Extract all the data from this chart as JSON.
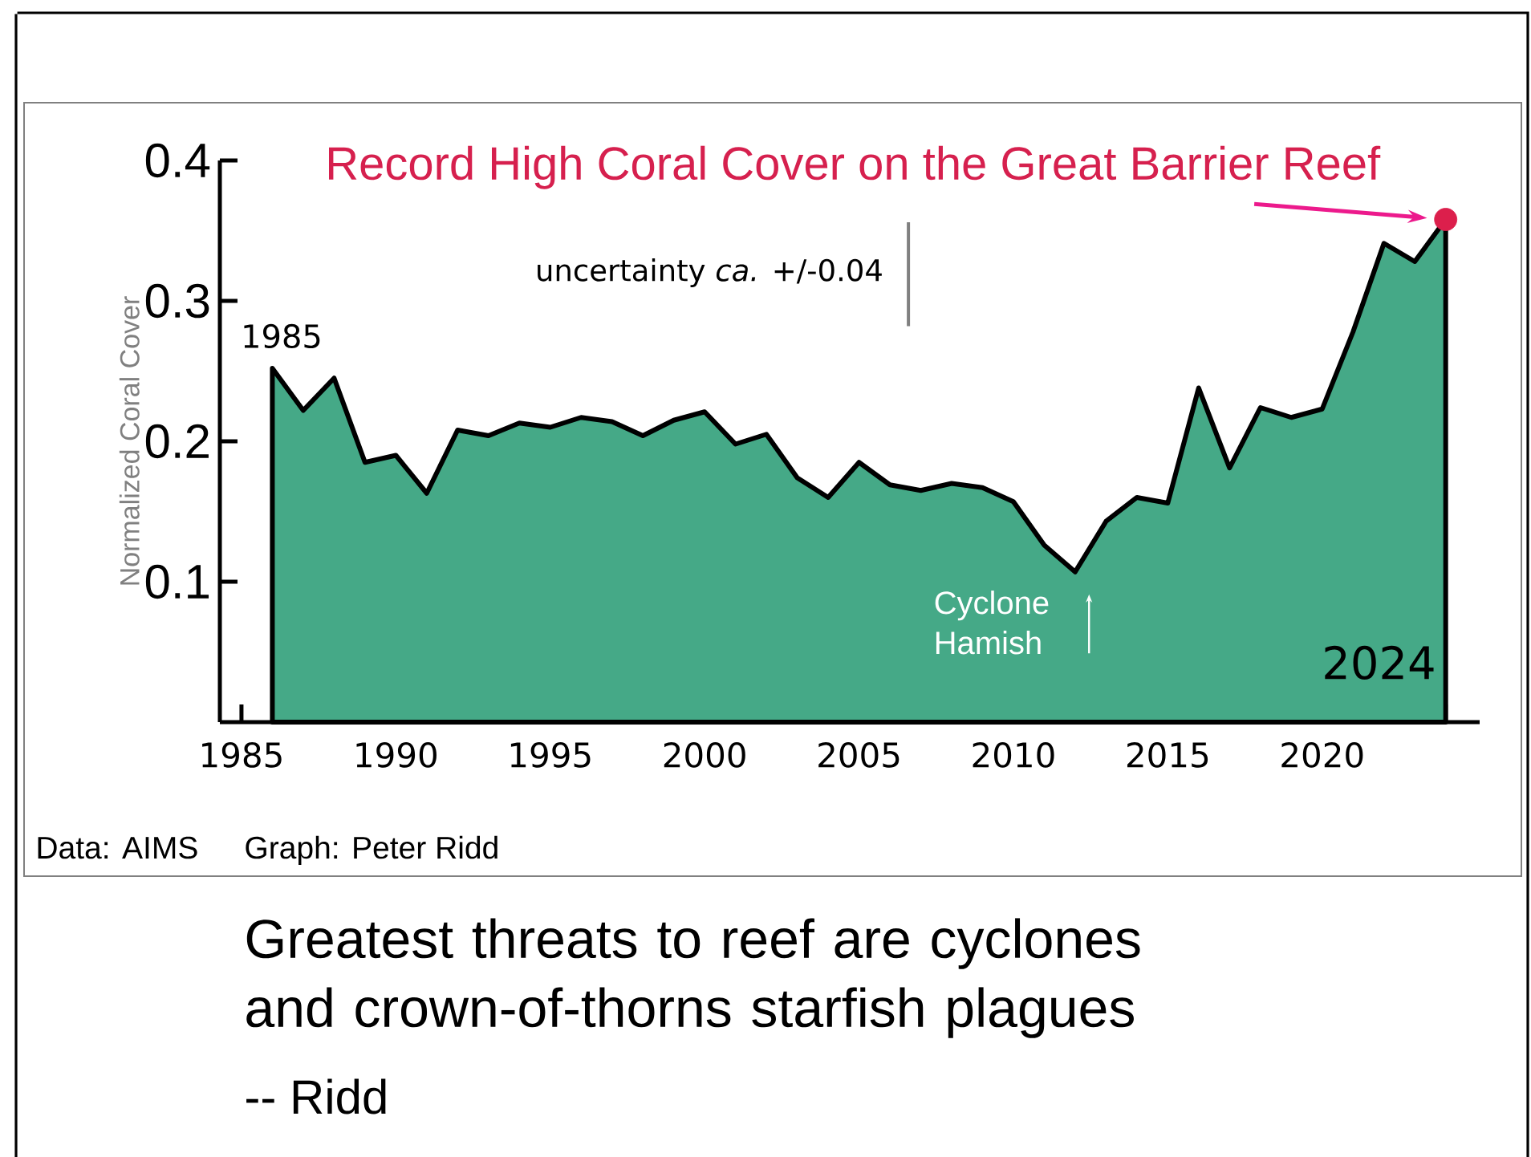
{
  "chart_data": {
    "type": "area",
    "ylabel": "Normalized Coral Cover",
    "x": [
      1986,
      1987,
      1988,
      1989,
      1990,
      1991,
      1992,
      1993,
      1994,
      1995,
      1996,
      1997,
      1998,
      1999,
      2000,
      2001,
      2002,
      2003,
      2004,
      2005,
      2006,
      2007,
      2008,
      2009,
      2010,
      2011,
      2012,
      2013,
      2014,
      2015,
      2016,
      2017,
      2018,
      2019,
      2020,
      2021,
      2022,
      2023,
      2024
    ],
    "series": [
      {
        "color": "#45a987",
        "values": [
          0.252,
          0.222,
          0.245,
          0.185,
          0.19,
          0.163,
          0.208,
          0.204,
          0.213,
          0.21,
          0.217,
          0.214,
          0.204,
          0.215,
          0.221,
          0.198,
          0.205,
          0.174,
          0.16,
          0.185,
          0.169,
          0.165,
          0.17,
          0.167,
          0.157,
          0.126,
          0.107,
          0.143,
          0.16,
          0.156,
          0.238,
          0.181,
          0.224,
          0.217,
          0.223,
          0.278,
          0.341,
          0.328,
          0.358
        ]
      },
      {
        "type": "scatter",
        "color": "#dc1f4c",
        "marker": "circle",
        "values": [
          null,
          null,
          null,
          null,
          null,
          null,
          null,
          null,
          null,
          null,
          null,
          null,
          null,
          null,
          null,
          null,
          null,
          null,
          null,
          null,
          null,
          null,
          null,
          null,
          null,
          null,
          null,
          null,
          null,
          null,
          null,
          null,
          null,
          null,
          null,
          null,
          null,
          null,
          0.358
        ]
      },
      {
        "type": "line",
        "color": "#808080",
        "x": [
          2006.6,
          2006.6
        ],
        "values": [
          0.282,
          0.356
        ]
      }
    ],
    "xlim": [
      1984.3,
      2025.1
    ],
    "ylim": [
      0,
      0.4
    ],
    "xticks": [
      1985,
      1990,
      1995,
      2000,
      2005,
      2010,
      2015,
      2020,
      {
        "value": 2024,
        "label": null
      }
    ],
    "yticks": [
      0.1,
      0.2,
      0.3,
      0.4
    ],
    "annotations": [
      {
        "text": "Record High Coral Cover on the Great Barrier Reef",
        "x": 2024,
        "y": 0.358
      },
      {
        "text": "1985",
        "x": 1986,
        "y": 0.252
      },
      "2024",
      {
        "text": "Cyclone Hamish",
        "x": 2012,
        "y": 0.107
      },
      "uncertainty *ca.* +/-0.04",
      "Data: AIMS",
      "Graph: Peter Ridd",
      "Greatest threats to reef are cyclones and crown-of-thorns starfish plagues",
      "-- Ridd"
    ]
  }
}
